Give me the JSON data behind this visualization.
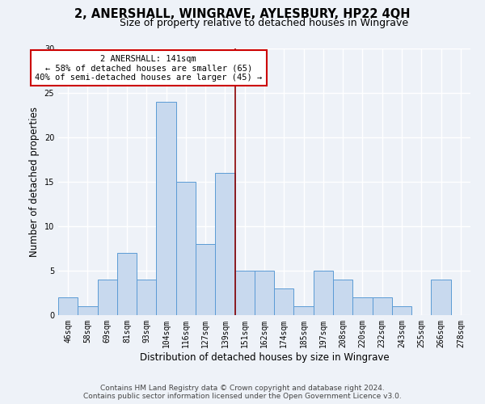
{
  "title": "2, ANERSHALL, WINGRAVE, AYLESBURY, HP22 4QH",
  "subtitle": "Size of property relative to detached houses in Wingrave",
  "xlabel": "Distribution of detached houses by size in Wingrave",
  "ylabel": "Number of detached properties",
  "categories": [
    "46sqm",
    "58sqm",
    "69sqm",
    "81sqm",
    "93sqm",
    "104sqm",
    "116sqm",
    "127sqm",
    "139sqm",
    "151sqm",
    "162sqm",
    "174sqm",
    "185sqm",
    "197sqm",
    "208sqm",
    "220sqm",
    "232sqm",
    "243sqm",
    "255sqm",
    "266sqm",
    "278sqm"
  ],
  "values": [
    2,
    1,
    4,
    7,
    4,
    24,
    15,
    8,
    16,
    5,
    5,
    3,
    1,
    5,
    4,
    2,
    2,
    1,
    0,
    4,
    0
  ],
  "bar_color": "#c8d9ee",
  "bar_edge_color": "#5b9bd5",
  "property_line_x": 8.5,
  "property_line_color": "#8b0000",
  "annotation_text": "2 ANERSHALL: 141sqm\n← 58% of detached houses are smaller (65)\n40% of semi-detached houses are larger (45) →",
  "annotation_box_color": "#ffffff",
  "annotation_box_edge_color": "#cc0000",
  "ylim": [
    0,
    30
  ],
  "yticks": [
    0,
    5,
    10,
    15,
    20,
    25,
    30
  ],
  "footer_line1": "Contains HM Land Registry data © Crown copyright and database right 2024.",
  "footer_line2": "Contains public sector information licensed under the Open Government Licence v3.0.",
  "background_color": "#eef2f8",
  "grid_color": "#ffffff",
  "title_fontsize": 10.5,
  "subtitle_fontsize": 9,
  "axis_label_fontsize": 8.5,
  "tick_fontsize": 7,
  "footer_fontsize": 6.5,
  "annotation_fontsize": 7.5
}
